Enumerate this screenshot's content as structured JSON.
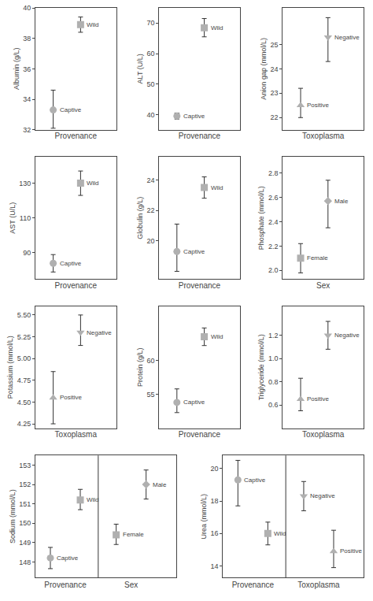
{
  "chart_data": [
    {
      "type": "scatter",
      "xlabel": "Provenance",
      "ylabel": "Albumin (g/L)",
      "ylim": [
        32,
        40
      ],
      "yticks": [
        32,
        34,
        36,
        38,
        40
      ],
      "grid": false,
      "tick_labels": "y",
      "color": "#b0b0b0",
      "series": [
        {
          "name": "Captive",
          "marker": "circle",
          "values": [
            33.3
          ],
          "error_lo": [
            1.2
          ],
          "error_hi": [
            1.3
          ]
        },
        {
          "name": "Wild",
          "marker": "square",
          "values": [
            38.9
          ],
          "error_lo": [
            0.5
          ],
          "error_hi": [
            0.5
          ]
        }
      ]
    },
    {
      "type": "scatter",
      "xlabel": "Provenance",
      "ylabel": "ALT (U/L)",
      "ylim": [
        35,
        75
      ],
      "yticks": [
        40,
        50,
        60,
        70
      ],
      "grid": false,
      "tick_labels": "y",
      "color": "#b0b0b0",
      "series": [
        {
          "name": "Captive",
          "marker": "circle",
          "values": [
            39.5
          ],
          "error_lo": [
            1.0
          ],
          "error_hi": [
            1.0
          ]
        },
        {
          "name": "Wild",
          "marker": "square",
          "values": [
            68.5
          ],
          "error_lo": [
            3.0
          ],
          "error_hi": [
            3.0
          ]
        }
      ]
    },
    {
      "type": "scatter",
      "xlabel": "Toxoplasma",
      "ylabel": "Anion gap (mmol/L)",
      "ylim": [
        21.5,
        26.5
      ],
      "yticks": [
        22,
        23,
        24,
        25
      ],
      "grid": false,
      "tick_labels": "y",
      "color": "#b0b0b0",
      "series": [
        {
          "name": "Positive",
          "marker": "triangle-up",
          "values": [
            22.5
          ],
          "error_lo": [
            0.5
          ],
          "error_hi": [
            0.7
          ]
        },
        {
          "name": "Negative",
          "marker": "triangle-down",
          "values": [
            25.3
          ],
          "error_lo": [
            1.0
          ],
          "error_hi": [
            0.8
          ]
        }
      ]
    },
    {
      "type": "scatter",
      "xlabel": "Provenance",
      "ylabel": "AST (U/L)",
      "ylim": [
        75,
        145
      ],
      "yticks": [
        90,
        110,
        130
      ],
      "grid": false,
      "tick_labels": "y",
      "color": "#b0b0b0",
      "series": [
        {
          "name": "Captive",
          "marker": "circle",
          "values": [
            84.0
          ],
          "error_lo": [
            5.0
          ],
          "error_hi": [
            5.0
          ]
        },
        {
          "name": "Wild",
          "marker": "square",
          "values": [
            130.0
          ],
          "error_lo": [
            7.0
          ],
          "error_hi": [
            7.0
          ]
        }
      ]
    },
    {
      "type": "scatter",
      "xlabel": "Provenance",
      "ylabel": "Globulin (g/L)",
      "ylim": [
        17.5,
        25.5
      ],
      "yticks": [
        20,
        22,
        24
      ],
      "grid": false,
      "tick_labels": "y",
      "color": "#b0b0b0",
      "series": [
        {
          "name": "Captive",
          "marker": "circle",
          "values": [
            19.3
          ],
          "error_lo": [
            1.3
          ],
          "error_hi": [
            1.8
          ]
        },
        {
          "name": "Wild",
          "marker": "square",
          "values": [
            23.5
          ],
          "error_lo": [
            0.7
          ],
          "error_hi": [
            0.7
          ]
        }
      ]
    },
    {
      "type": "scatter",
      "xlabel": "Sex",
      "ylabel": "Phosphate (mmol/L)",
      "ylim": [
        1.93,
        2.93
      ],
      "yticks": [
        {
          "value": 2.0,
          "label": "2.0"
        },
        2.2,
        2.4,
        2.6,
        2.8
      ],
      "grid": false,
      "tick_labels": "y",
      "color": "#b0b0b0",
      "series": [
        {
          "name": "Female",
          "marker": "square",
          "values": [
            2.1
          ],
          "error_lo": [
            0.12
          ],
          "error_hi": [
            0.12
          ]
        },
        {
          "name": "Male",
          "marker": "diamond",
          "values": [
            2.57
          ],
          "error_lo": [
            0.22
          ],
          "error_hi": [
            0.17
          ]
        }
      ]
    },
    {
      "type": "scatter",
      "xlabel": "Toxoplasma",
      "ylabel": "Potassium (mmol/L)",
      "ylim": [
        4.2,
        5.6
      ],
      "yticks": [
        4.25,
        {
          "value": 4.5,
          "label": "4.50"
        },
        4.75,
        {
          "value": 5.0,
          "label": "5.00"
        },
        5.25,
        {
          "value": 5.5,
          "label": "5.50"
        }
      ],
      "grid": false,
      "tick_labels": "y",
      "color": "#b0b0b0",
      "series": [
        {
          "name": "Positive",
          "marker": "triangle-up",
          "values": [
            4.55
          ],
          "error_lo": [
            0.3
          ],
          "error_hi": [
            0.3
          ]
        },
        {
          "name": "Negative",
          "marker": "triangle-down",
          "values": [
            5.3
          ],
          "error_lo": [
            0.15
          ],
          "error_hi": [
            0.2
          ]
        }
      ]
    },
    {
      "type": "scatter",
      "xlabel": "Provenance",
      "ylabel": "Protein (g/L)",
      "ylim": [
        50,
        68
      ],
      "yticks": [
        55,
        60
      ],
      "grid": false,
      "tick_labels": "y",
      "color": "#b0b0b0",
      "series": [
        {
          "name": "Captive",
          "marker": "circle",
          "values": [
            53.8
          ],
          "error_lo": [
            1.5
          ],
          "error_hi": [
            2.0
          ]
        },
        {
          "name": "Wild",
          "marker": "square",
          "values": [
            63.5
          ],
          "error_lo": [
            1.3
          ],
          "error_hi": [
            1.3
          ]
        }
      ]
    },
    {
      "type": "scatter",
      "xlabel": "Toxoplasma",
      "ylabel": "Triglyceride (mmol/L)",
      "ylim": [
        0.4,
        1.45
      ],
      "yticks": [
        0.6,
        0.8,
        {
          "value": 1.0,
          "label": "1.0"
        },
        1.2
      ],
      "grid": false,
      "tick_labels": "y",
      "color": "#b0b0b0",
      "series": [
        {
          "name": "Positive",
          "marker": "triangle-up",
          "values": [
            0.65
          ],
          "error_lo": [
            0.1
          ],
          "error_hi": [
            0.18
          ]
        },
        {
          "name": "Negative",
          "marker": "triangle-down",
          "values": [
            1.2
          ],
          "error_lo": [
            0.12
          ],
          "error_hi": [
            0.12
          ]
        }
      ]
    },
    {
      "type": "scatter",
      "categories": [
        "Provenance",
        "Sex"
      ],
      "ylabel": "Sodium (mmol/L)",
      "ylim": [
        147.2,
        153.5
      ],
      "yticks": [
        148,
        149,
        150,
        151,
        152,
        153
      ],
      "grid": false,
      "color": "#b0b0b0",
      "series": [
        {
          "name": "Captive",
          "marker": "circle",
          "values": [
            148.2,
            null
          ],
          "error_lo": [
            0.55,
            null
          ],
          "error_hi": [
            0.55,
            null
          ]
        },
        {
          "name": "Wild",
          "marker": "square",
          "values": [
            151.2,
            null
          ],
          "error_lo": [
            0.5,
            null
          ],
          "error_hi": [
            0.55,
            null
          ]
        },
        {
          "name": "Female",
          "marker": "square",
          "values": [
            null,
            149.4
          ],
          "error_lo": [
            null,
            0.5
          ],
          "error_hi": [
            null,
            0.55
          ]
        },
        {
          "name": "Male",
          "marker": "diamond",
          "values": [
            null,
            152.0
          ],
          "error_lo": [
            null,
            0.75
          ],
          "error_hi": [
            null,
            0.75
          ]
        }
      ]
    },
    {
      "type": "scatter",
      "categories": [
        "Provenance",
        "Toxoplasma"
      ],
      "ylabel": "Urea (mmol/L)",
      "ylim": [
        13.3,
        20.8
      ],
      "yticks": [
        14,
        16,
        18,
        20
      ],
      "grid": false,
      "color": "#b0b0b0",
      "series": [
        {
          "name": "Captive",
          "marker": "circle",
          "values": [
            19.3,
            null
          ],
          "error_lo": [
            1.6,
            null
          ],
          "error_hi": [
            1.2,
            null
          ]
        },
        {
          "name": "Wild",
          "marker": "square",
          "values": [
            16.0,
            null
          ],
          "error_lo": [
            0.7,
            null
          ],
          "error_hi": [
            0.7,
            null
          ]
        },
        {
          "name": "Negative",
          "marker": "triangle-down",
          "values": [
            null,
            18.3
          ],
          "error_lo": [
            null,
            0.9
          ],
          "error_hi": [
            null,
            0.9
          ]
        },
        {
          "name": "Positive",
          "marker": "triangle-up",
          "values": [
            null,
            14.9
          ],
          "error_lo": [
            null,
            1.0
          ],
          "error_hi": [
            null,
            1.3
          ]
        }
      ]
    }
  ]
}
